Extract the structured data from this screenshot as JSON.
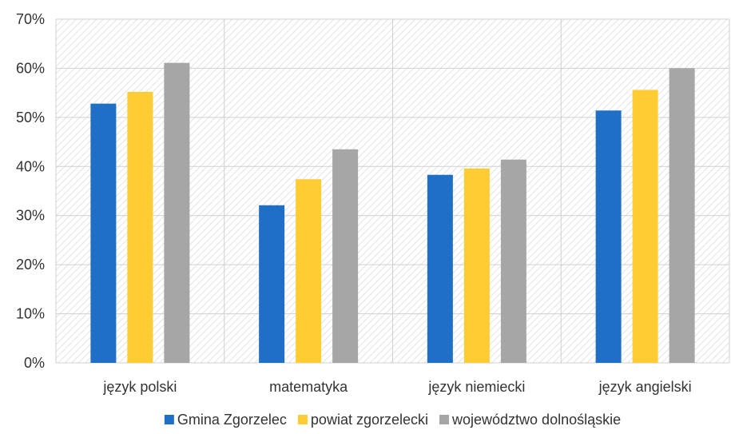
{
  "chart_data": {
    "type": "bar",
    "categories": [
      "język polski",
      "matematyka",
      "język niemiecki",
      "język angielski"
    ],
    "series": [
      {
        "name": "Gmina Zgorzelec",
        "color": "#1f6fc6",
        "values": [
          52.8,
          32.1,
          38.3,
          51.4
        ]
      },
      {
        "name": "powiat zgorzelecki",
        "color": "#ffcc33",
        "values": [
          55.2,
          37.4,
          39.6,
          55.6
        ]
      },
      {
        "name": "województwo dolnośląskie",
        "color": "#a6a6a6",
        "values": [
          61.1,
          43.5,
          41.4,
          60.0
        ]
      }
    ],
    "ylim": [
      0,
      70
    ],
    "yticks": [
      "0%",
      "10%",
      "20%",
      "30%",
      "40%",
      "50%",
      "60%",
      "70%"
    ],
    "grid": true,
    "legend_position": "bottom",
    "title": "",
    "xlabel": "",
    "ylabel": ""
  }
}
